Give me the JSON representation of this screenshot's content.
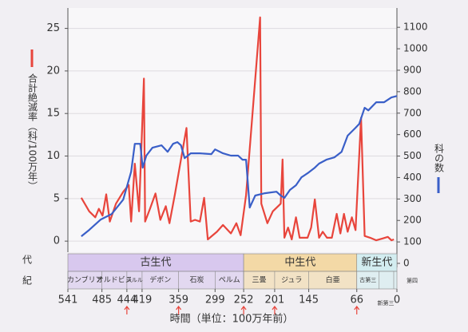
{
  "chart_data": {
    "type": "line",
    "ylabel": "合計絶滅率（科/100万年）",
    "y2label": "科の数",
    "xlabel": "時間（単位：100万年前）",
    "row_labels": [
      "代",
      "紀"
    ],
    "eras": [
      "古生代",
      "中生代",
      "新生代"
    ],
    "periods": [
      "カンブリア",
      "オルドビス",
      "シルル",
      "デボン",
      "石炭",
      "ペルム",
      "三畳",
      "ジュラ",
      "白亜",
      "古第三",
      "新第三",
      "第四"
    ],
    "xlim": [
      541,
      0
    ],
    "xticks": [
      541,
      485,
      444,
      419,
      359,
      299,
      252,
      201,
      145,
      66,
      0
    ],
    "ylim": [
      -1.3,
      27.4
    ],
    "yticks": [
      0,
      5,
      10,
      15,
      20,
      25
    ],
    "y2lim": [
      0,
      1190
    ],
    "y2ticks": [
      0,
      100,
      200,
      300,
      400,
      500,
      600,
      700,
      800,
      900,
      1000,
      1100
    ],
    "grid": true,
    "series": [
      {
        "color": "#e8453c",
        "axis": "y",
        "x": [
          519,
          506,
          496,
          490,
          484,
          478,
          472,
          462,
          450,
          441,
          437,
          431,
          424,
          416,
          414,
          406,
          397,
          389,
          380,
          374,
          365,
          355,
          346,
          339,
          332,
          324,
          317,
          311,
          296,
          286,
          273,
          264,
          257,
          248,
          225,
          223,
          213,
          204,
          191,
          188,
          185,
          179,
          173,
          166,
          160,
          147,
          141,
          135,
          128,
          122,
          115,
          107,
          99,
          93,
          87,
          81,
          74,
          68,
          59,
          53,
          44,
          34,
          24,
          15,
          9,
          5
        ],
        "values": [
          5.1,
          3.5,
          2.8,
          3.8,
          3.0,
          5.5,
          2.3,
          4.4,
          5.8,
          6.6,
          2.3,
          9.1,
          3.5,
          19.1,
          2.3,
          3.8,
          5.6,
          2.5,
          4.1,
          2.1,
          5.5,
          9.6,
          13.3,
          2.3,
          2.5,
          2.3,
          5.1,
          0.2,
          1.1,
          1.9,
          0.9,
          2.1,
          0.7,
          5.4,
          26.3,
          4.4,
          2.1,
          3.5,
          4.4,
          9.6,
          0.4,
          1.6,
          0.2,
          2.8,
          0.4,
          0.4,
          1.6,
          4.9,
          0.4,
          1.1,
          0.4,
          0.4,
          3.2,
          0.9,
          3.2,
          1.1,
          2.8,
          1.3,
          14.5,
          0.6,
          0.4,
          0.1,
          0.3,
          0.5,
          0.1,
          0.2
        ]
      },
      {
        "color": "#3a5fc8",
        "axis": "y2",
        "x": [
          519,
          506,
          487,
          469,
          450,
          437,
          431,
          422,
          418,
          412,
          402,
          387,
          377,
          368,
          361,
          355,
          349,
          339,
          324,
          305,
          299,
          286,
          273,
          261,
          254,
          248,
          242,
          233,
          217,
          198,
          191,
          185,
          176,
          166,
          157,
          147,
          135,
          128,
          116,
          103,
          91,
          81,
          68,
          62,
          53,
          47,
          34,
          21,
          9,
          0
        ],
        "values": [
          126,
          156,
          204,
          230,
          297,
          427,
          557,
          557,
          446,
          502,
          539,
          550,
          520,
          557,
          565,
          550,
          490,
          513,
          513,
          509,
          531,
          513,
          502,
          502,
          483,
          483,
          260,
          316,
          327,
          334,
          316,
          305,
          342,
          364,
          401,
          420,
          446,
          465,
          483,
          494,
          520,
          595,
          632,
          650,
          725,
          713,
          751,
          751,
          773,
          780
        ]
      }
    ]
  }
}
